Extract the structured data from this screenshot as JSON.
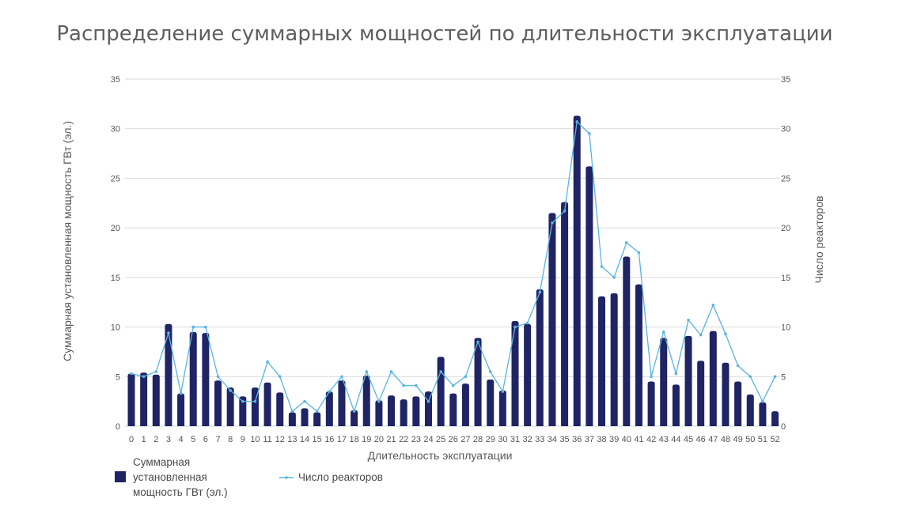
{
  "chart_data": {
    "type": "bar",
    "title": "Распределение суммарных мощностей по длительности эксплуатации",
    "xlabel": "Длительность эксплуатации",
    "ylabel": "Суммарная установленная мощность ГВт (эл.)",
    "y2label": "Число реакторов",
    "ylim": [
      0,
      35
    ],
    "y2lim": [
      0,
      35
    ],
    "yticks": [
      0,
      5,
      10,
      15,
      20,
      25,
      30,
      35
    ],
    "grid": true,
    "legend_position": "bottom-left",
    "categories": [
      "0",
      "1",
      "2",
      "3",
      "4",
      "5",
      "6",
      "7",
      "8",
      "9",
      "10",
      "11",
      "12",
      "13",
      "14",
      "15",
      "16",
      "17",
      "18",
      "19",
      "20",
      "21",
      "22",
      "23",
      "24",
      "25",
      "26",
      "27",
      "28",
      "29",
      "30",
      "31",
      "32",
      "33",
      "34",
      "35",
      "36",
      "37",
      "38",
      "39",
      "40",
      "41",
      "42",
      "43",
      "44",
      "45",
      "46",
      "47",
      "48",
      "49",
      "50",
      "51",
      "52"
    ],
    "series": [
      {
        "name": "Суммарная установленная мощность ГВт (эл.)",
        "type": "bar",
        "axis": "left",
        "color": "#1f2464",
        "values": [
          5.3,
          5.4,
          5.2,
          10.3,
          3.3,
          9.5,
          9.4,
          4.6,
          3.9,
          3.0,
          3.9,
          4.4,
          3.4,
          1.4,
          1.8,
          1.4,
          3.5,
          4.6,
          1.6,
          5.1,
          2.6,
          3.1,
          2.7,
          3.0,
          3.5,
          7.0,
          3.3,
          4.3,
          8.9,
          4.7,
          3.6,
          10.6,
          10.3,
          13.8,
          21.5,
          22.6,
          31.3,
          26.2,
          13.1,
          13.4,
          17.1,
          14.3,
          4.5,
          8.9,
          4.2,
          9.1,
          6.6,
          9.6,
          6.4,
          4.5,
          3.2,
          2.4,
          1.5
        ]
      },
      {
        "name": "Число реакторов",
        "type": "line",
        "axis": "right",
        "color": "#5ab4e0",
        "values": [
          5.3,
          5.0,
          5.5,
          9.4,
          3.3,
          10.0,
          10.0,
          5.0,
          3.6,
          2.5,
          2.5,
          6.5,
          5.0,
          1.5,
          2.5,
          1.5,
          3.5,
          5.0,
          1.5,
          5.5,
          2.5,
          5.5,
          4.1,
          4.1,
          2.5,
          5.5,
          4.1,
          5.0,
          8.5,
          5.5,
          3.5,
          10.0,
          10.4,
          13.5,
          20.5,
          21.7,
          30.7,
          29.5,
          16.1,
          15.0,
          18.5,
          17.5,
          5.0,
          9.5,
          5.3,
          10.7,
          9.2,
          12.2,
          9.3,
          6.1,
          5.0,
          2.5,
          5.0
        ]
      }
    ]
  }
}
